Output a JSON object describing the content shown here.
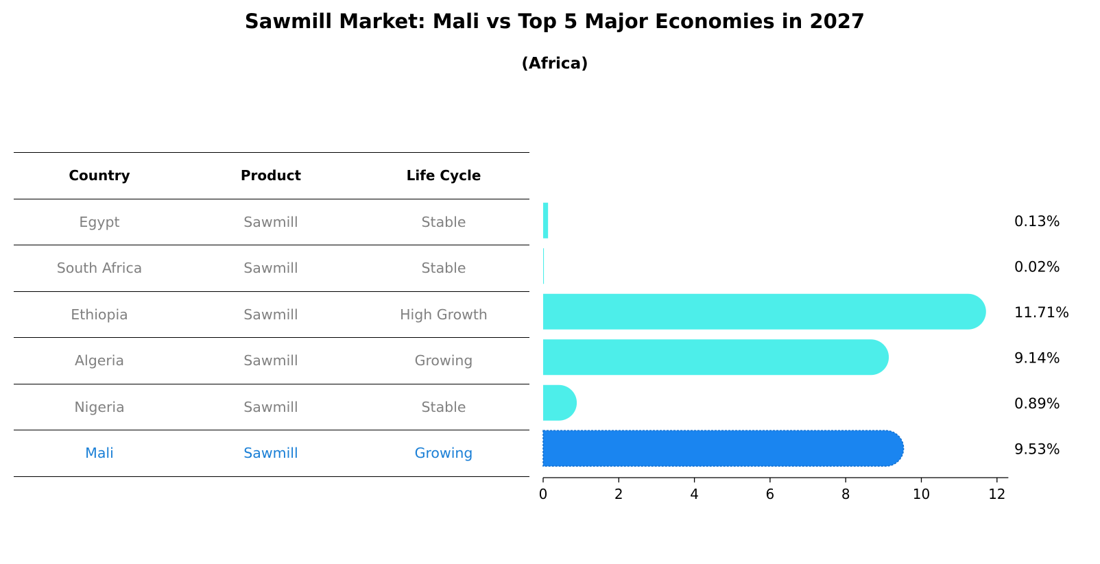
{
  "chart_data": {
    "type": "bar",
    "orientation": "horizontal",
    "title": "Sawmill Market: Mali vs Top 5 Major Economies in 2027",
    "subtitle": "(Africa)",
    "table": {
      "headers": [
        "Country",
        "Product",
        "Life Cycle"
      ],
      "rows": [
        {
          "country": "Egypt",
          "product": "Sawmill",
          "life_cycle": "Stable"
        },
        {
          "country": "South Africa",
          "product": "Sawmill",
          "life_cycle": "Stable"
        },
        {
          "country": "Ethiopia",
          "product": "Sawmill",
          "life_cycle": "High Growth"
        },
        {
          "country": "Algeria",
          "product": "Sawmill",
          "life_cycle": "Growing"
        },
        {
          "country": "Nigeria",
          "product": "Sawmill",
          "life_cycle": "Stable"
        },
        {
          "country": "Mali",
          "product": "Sawmill",
          "life_cycle": "Growing"
        }
      ]
    },
    "categories": [
      "Egypt",
      "South Africa",
      "Ethiopia",
      "Algeria",
      "Nigeria",
      "Mali"
    ],
    "values": [
      0.13,
      0.02,
      11.71,
      9.14,
      0.89,
      9.53
    ],
    "value_labels": [
      "0.13%",
      "0.02%",
      "11.71%",
      "9.14%",
      "0.89%",
      "9.53%"
    ],
    "highlight": "Mali",
    "xlim": [
      0,
      12.3
    ],
    "xticks": [
      0,
      2,
      4,
      6,
      8,
      10,
      12
    ],
    "xlabel": "",
    "ylabel": "",
    "colors": {
      "bar": "#4deeea",
      "highlight": "#1a85f0",
      "highlight_text": "#1a7fd6",
      "muted_text": "#808080"
    }
  }
}
